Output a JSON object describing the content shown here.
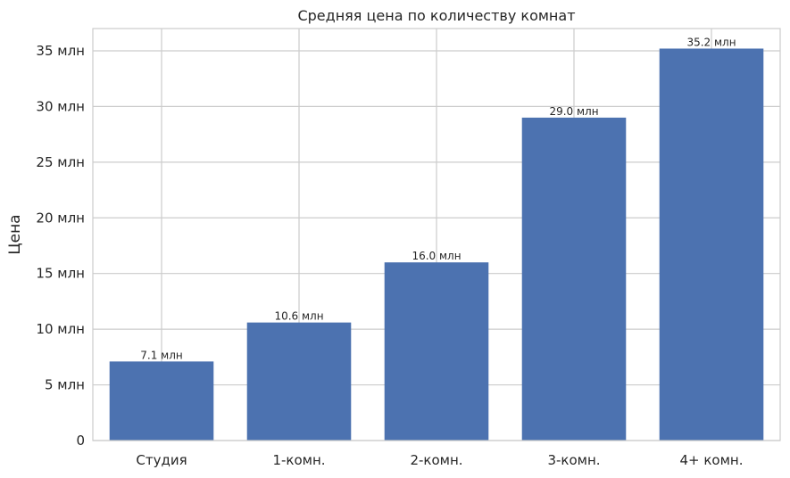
{
  "chart_data": {
    "type": "bar",
    "title": "Средняя цена по количеству комнат",
    "xlabel": "",
    "ylabel": "Цена",
    "categories": [
      "Студия",
      "1-комн.",
      "2-комн.",
      "3-комн.",
      "4+ комн."
    ],
    "values": [
      7.1,
      10.6,
      16.0,
      29.0,
      35.2
    ],
    "value_labels": [
      "7.1 млн",
      "10.6 млн",
      "16.0 млн",
      "29.0 млн",
      "35.2 млн"
    ],
    "ylim": [
      0,
      37
    ],
    "yticks": [
      0,
      5,
      10,
      15,
      20,
      25,
      30,
      35
    ],
    "ytick_labels": [
      "0",
      "5 млн",
      "10 млн",
      "15 млн",
      "20 млн",
      "25 млн",
      "30 млн",
      "35 млн"
    ],
    "grid": true,
    "bar_color": "#4c72b0"
  }
}
